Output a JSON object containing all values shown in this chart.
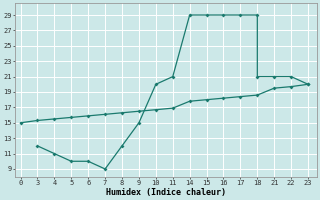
{
  "xlabel": "Humidex (Indice chaleur)",
  "bg_color": "#cce8e8",
  "line_color": "#1a7a6e",
  "grid_color": "#ffffff",
  "xlabels": [
    "0",
    "3",
    "4",
    "5",
    "6",
    "7",
    "8",
    "9",
    "1011",
    "",
    "1415",
    "",
    "161718",
    "",
    "",
    "212223",
    "",
    ""
  ],
  "xtick_positions": [
    0,
    1,
    2,
    3,
    4,
    5,
    6,
    7,
    8,
    9,
    10,
    11,
    12,
    13,
    14,
    15,
    16,
    17
  ],
  "xtick_labels": [
    "0",
    "3",
    "4",
    "5",
    "6",
    "7",
    "8",
    "9",
    "10",
    "11",
    "14",
    "15",
    "16",
    "17",
    "18",
    "21",
    "22",
    "23"
  ],
  "yticks": [
    9,
    11,
    13,
    15,
    17,
    19,
    21,
    23,
    25,
    27,
    29
  ],
  "line1_x": [
    0,
    1,
    2,
    3,
    4,
    5,
    6,
    7,
    8,
    9,
    10,
    11,
    12,
    13,
    14,
    15,
    16,
    17
  ],
  "line1_y": [
    15,
    15.3,
    15.5,
    15.7,
    15.9,
    16.1,
    16.3,
    16.5,
    16.7,
    16.9,
    17.8,
    18.0,
    18.2,
    18.4,
    18.6,
    19.5,
    19.7,
    20.0
  ],
  "line2_x": [
    1,
    2,
    3,
    4,
    5,
    6,
    7,
    8,
    9,
    10,
    11,
    12,
    13,
    14,
    14,
    15,
    16,
    17
  ],
  "line2_y": [
    12,
    11,
    10,
    10,
    9,
    12,
    15,
    20,
    21,
    29,
    29,
    29,
    29,
    29,
    21,
    21,
    21,
    20
  ],
  "ylim_min": 8,
  "ylim_max": 30.5,
  "xlim_min": -0.3,
  "xlim_max": 17.5
}
